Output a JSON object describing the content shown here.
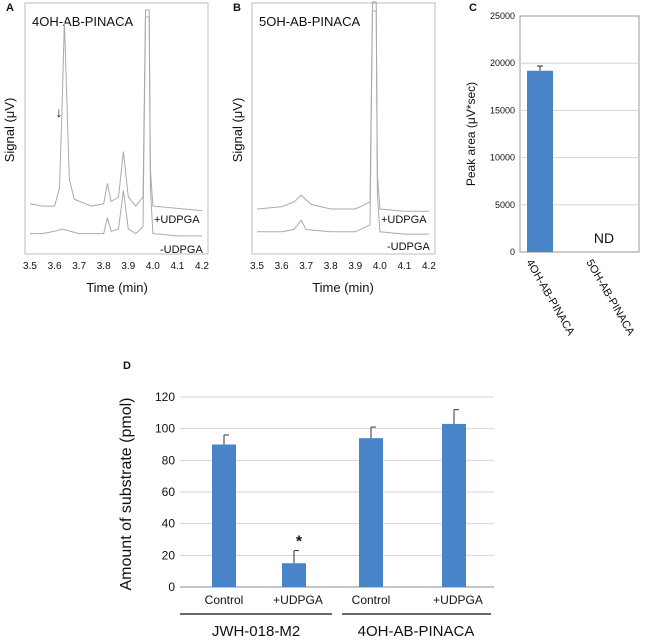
{
  "chart_data": [
    {
      "panel": "A",
      "type": "line",
      "inset_label": "4OH-AB-PINACA",
      "xlabel": "Time (min)",
      "ylabel": "Signal (μV)",
      "xlim": [
        3.5,
        4.2
      ],
      "x_ticks": [
        "3.5",
        "3.6",
        "3.7",
        "3.8",
        "3.9",
        "4.0",
        "4.1",
        "4.2"
      ],
      "annotation": "↓",
      "series": [
        {
          "name": "+UDPGA",
          "points": [
            [
              3.5,
              0.15
            ],
            [
              3.55,
              0.14
            ],
            [
              3.6,
              0.14
            ],
            [
              3.62,
              0.22
            ],
            [
              3.63,
              0.55
            ],
            [
              3.64,
              0.95
            ],
            [
              3.65,
              0.6
            ],
            [
              3.66,
              0.26
            ],
            [
              3.68,
              0.17
            ],
            [
              3.75,
              0.14
            ],
            [
              3.8,
              0.15
            ],
            [
              3.815,
              0.24
            ],
            [
              3.83,
              0.16
            ],
            [
              3.86,
              0.18
            ],
            [
              3.88,
              0.38
            ],
            [
              3.9,
              0.18
            ],
            [
              3.93,
              0.14
            ],
            [
              3.96,
              0.18
            ],
            [
              3.97,
              1.0
            ],
            [
              3.985,
              1.0
            ],
            [
              3.99,
              0.3
            ],
            [
              4.0,
              0.14
            ],
            [
              4.1,
              0.13
            ],
            [
              4.2,
              0.12
            ]
          ]
        },
        {
          "name": "-UDPGA",
          "points": [
            [
              3.5,
              0.05
            ],
            [
              3.55,
              0.05
            ],
            [
              3.6,
              0.06
            ],
            [
              3.63,
              0.07
            ],
            [
              3.7,
              0.05
            ],
            [
              3.8,
              0.05
            ],
            [
              3.815,
              0.12
            ],
            [
              3.83,
              0.06
            ],
            [
              3.86,
              0.07
            ],
            [
              3.88,
              0.24
            ],
            [
              3.9,
              0.07
            ],
            [
              3.93,
              0.05
            ],
            [
              3.96,
              0.08
            ],
            [
              3.97,
              1.0
            ],
            [
              3.985,
              1.0
            ],
            [
              3.99,
              0.25
            ],
            [
              4.0,
              0.05
            ],
            [
              4.1,
              0.04
            ],
            [
              4.2,
              0.04
            ]
          ]
        }
      ]
    },
    {
      "panel": "B",
      "type": "line",
      "inset_label": "5OH-AB-PINACA",
      "xlabel": "Time (min)",
      "ylabel": "Signal (μV)",
      "xlim": [
        3.5,
        4.2
      ],
      "x_ticks": [
        "3.5",
        "3.6",
        "3.7",
        "3.8",
        "3.9",
        "4.0",
        "4.1",
        "4.2"
      ],
      "series": [
        {
          "name": "+UDPGA",
          "points": [
            [
              3.5,
              0.1
            ],
            [
              3.6,
              0.11
            ],
            [
              3.65,
              0.13
            ],
            [
              3.68,
              0.16
            ],
            [
              3.72,
              0.12
            ],
            [
              3.8,
              0.1
            ],
            [
              3.9,
              0.1
            ],
            [
              3.96,
              0.13
            ],
            [
              3.97,
              1.0
            ],
            [
              3.985,
              1.0
            ],
            [
              3.99,
              0.25
            ],
            [
              4.0,
              0.1
            ],
            [
              4.1,
              0.09
            ],
            [
              4.2,
              0.09
            ]
          ]
        },
        {
          "name": "-UDPGA",
          "points": [
            [
              3.5,
              0.04
            ],
            [
              3.6,
              0.04
            ],
            [
              3.65,
              0.05
            ],
            [
              3.68,
              0.09
            ],
            [
              3.7,
              0.05
            ],
            [
              3.8,
              0.04
            ],
            [
              3.9,
              0.04
            ],
            [
              3.96,
              0.07
            ],
            [
              3.97,
              1.0
            ],
            [
              3.985,
              1.0
            ],
            [
              3.99,
              0.2
            ],
            [
              4.0,
              0.04
            ],
            [
              4.1,
              0.03
            ],
            [
              4.2,
              0.03
            ]
          ]
        }
      ]
    },
    {
      "panel": "C",
      "type": "bar",
      "ylabel": "Peak area (μV*sec)",
      "ylim": [
        0,
        25000
      ],
      "y_ticks": [
        "0",
        "5000",
        "10000",
        "15000",
        "20000",
        "25000"
      ],
      "categories": [
        "4OH-AB-PINACA",
        "5OH-AB-PINACA"
      ],
      "values": [
        19200,
        0
      ],
      "errors": [
        500,
        0
      ],
      "bar_labels": [
        "",
        "ND"
      ],
      "grid": true
    },
    {
      "panel": "D",
      "type": "bar",
      "ylabel": "Amount of substrate (pmol)",
      "ylim": [
        0,
        120
      ],
      "y_ticks": [
        "0",
        "20",
        "40",
        "60",
        "80",
        "100",
        "120"
      ],
      "categories": [
        "Control",
        "+UDPGA",
        "Control",
        "+UDPGA"
      ],
      "groups": [
        "JWH-018-M2",
        "4OH-AB-PINACA"
      ],
      "values": [
        90,
        15,
        94,
        103
      ],
      "errors": [
        6,
        8,
        7,
        9
      ],
      "significance": [
        "",
        "*",
        "",
        ""
      ],
      "grid": true
    }
  ],
  "panel_letters": [
    "A",
    "B",
    "C",
    "D"
  ],
  "colors": {
    "bar": "#4a84c8",
    "trace": "#aaaaaa",
    "grid": "#d6d6d6"
  }
}
